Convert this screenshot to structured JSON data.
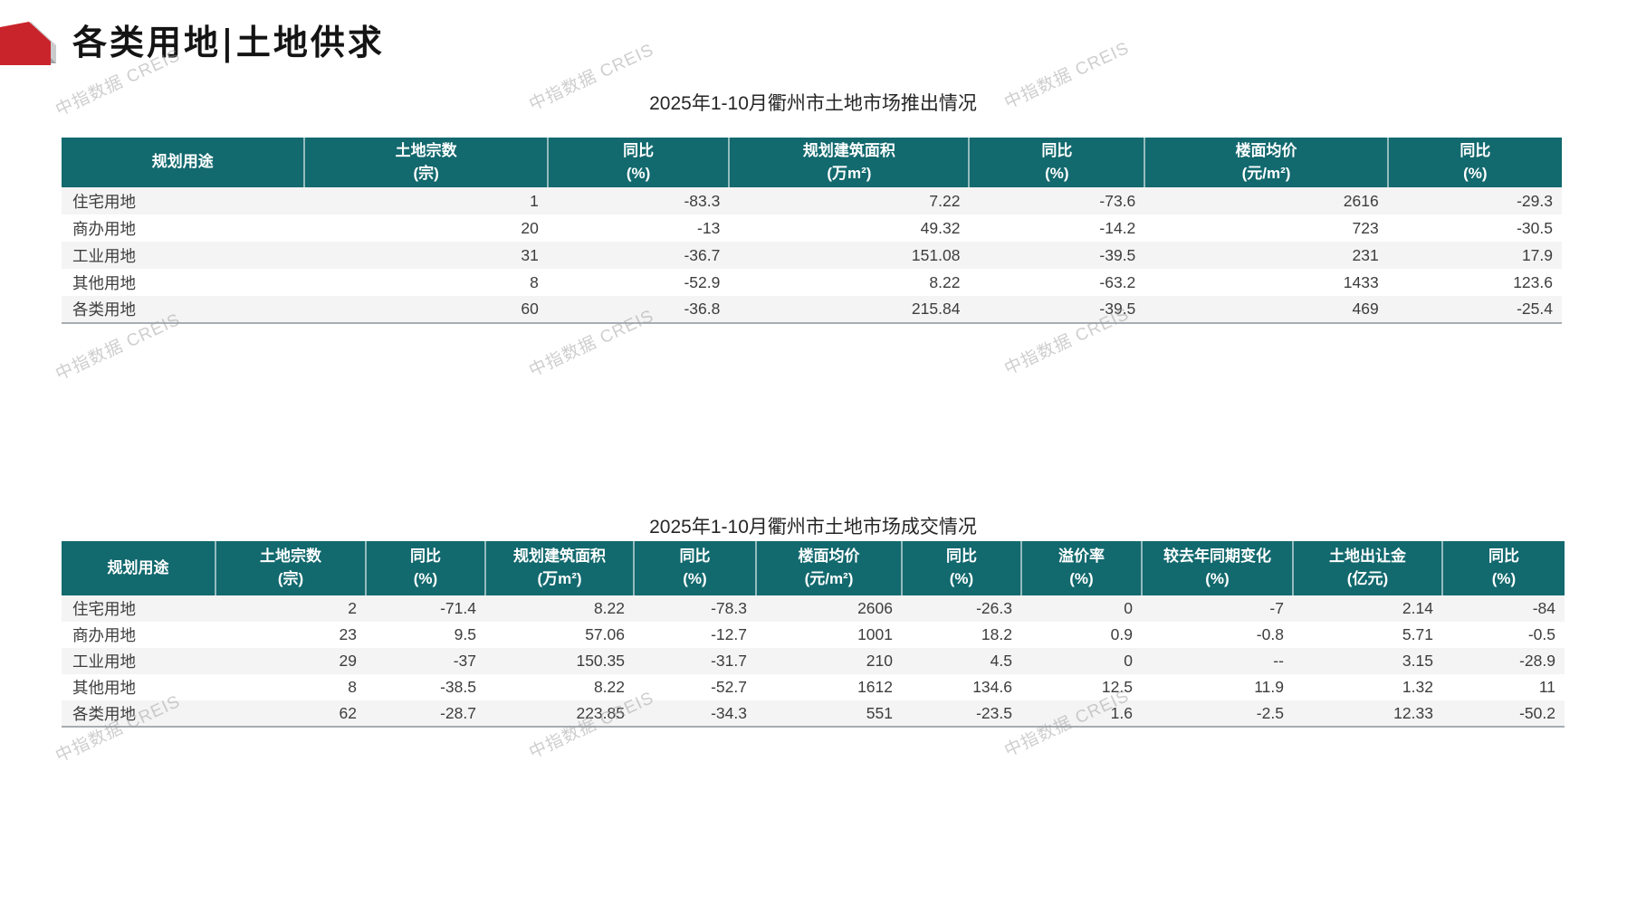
{
  "page": {
    "title": "各类用地|土地供求"
  },
  "watermark": {
    "text": "中指数据 CREIS"
  },
  "colors": {
    "header_teal": "#12696E",
    "logo_red": "#C9242B",
    "logo_gray_light": "#C9CBCD",
    "logo_gray_dark": "#9FA1A3",
    "row_alt": "#F4F4F5",
    "table_bottom_border": "#A6ADB2"
  },
  "tables": {
    "supply": {
      "title": "2025年1-10月衢州市土地市场推出情况",
      "columns": [
        {
          "label": "规划用途",
          "unit": ""
        },
        {
          "label": "土地宗数",
          "unit": "(宗)"
        },
        {
          "label": "同比",
          "unit": "(%)"
        },
        {
          "label": "规划建筑面积",
          "unit": "(万m²)"
        },
        {
          "label": "同比",
          "unit": "(%)"
        },
        {
          "label": "楼面均价",
          "unit": "(元/m²)"
        },
        {
          "label": "同比",
          "unit": "(%)"
        }
      ],
      "rows": [
        [
          "住宅用地",
          "1",
          "-83.3",
          "7.22",
          "-73.6",
          "2616",
          "-29.3"
        ],
        [
          "商办用地",
          "20",
          "-13",
          "49.32",
          "-14.2",
          "723",
          "-30.5"
        ],
        [
          "工业用地",
          "31",
          "-36.7",
          "151.08",
          "-39.5",
          "231",
          "17.9"
        ],
        [
          "其他用地",
          "8",
          "-52.9",
          "8.22",
          "-63.2",
          "1433",
          "123.6"
        ],
        [
          "各类用地",
          "60",
          "-36.8",
          "215.84",
          "-39.5",
          "469",
          "-25.4"
        ]
      ]
    },
    "deal": {
      "title": "2025年1-10月衢州市土地市场成交情况",
      "columns": [
        {
          "label": "规划用途",
          "unit": ""
        },
        {
          "label": "土地宗数",
          "unit": "(宗)"
        },
        {
          "label": "同比",
          "unit": "(%)"
        },
        {
          "label": "规划建筑面积",
          "unit": "(万m²)"
        },
        {
          "label": "同比",
          "unit": "(%)"
        },
        {
          "label": "楼面均价",
          "unit": "(元/m²)"
        },
        {
          "label": "同比",
          "unit": "(%)"
        },
        {
          "label": "溢价率",
          "unit": "(%)"
        },
        {
          "label": "较去年同期变化",
          "unit": "(%)"
        },
        {
          "label": "土地出让金",
          "unit": "(亿元)"
        },
        {
          "label": "同比",
          "unit": "(%)"
        }
      ],
      "rows": [
        [
          "住宅用地",
          "2",
          "-71.4",
          "8.22",
          "-78.3",
          "2606",
          "-26.3",
          "0",
          "-7",
          "2.14",
          "-84"
        ],
        [
          "商办用地",
          "23",
          "9.5",
          "57.06",
          "-12.7",
          "1001",
          "18.2",
          "0.9",
          "-0.8",
          "5.71",
          "-0.5"
        ],
        [
          "工业用地",
          "29",
          "-37",
          "150.35",
          "-31.7",
          "210",
          "4.5",
          "0",
          "--",
          "3.15",
          "-28.9"
        ],
        [
          "其他用地",
          "8",
          "-38.5",
          "8.22",
          "-52.7",
          "1612",
          "134.6",
          "12.5",
          "11.9",
          "1.32",
          "11"
        ],
        [
          "各类用地",
          "62",
          "-28.7",
          "223.85",
          "-34.3",
          "551",
          "-23.5",
          "1.6",
          "-2.5",
          "12.33",
          "-50.2"
        ]
      ]
    }
  }
}
